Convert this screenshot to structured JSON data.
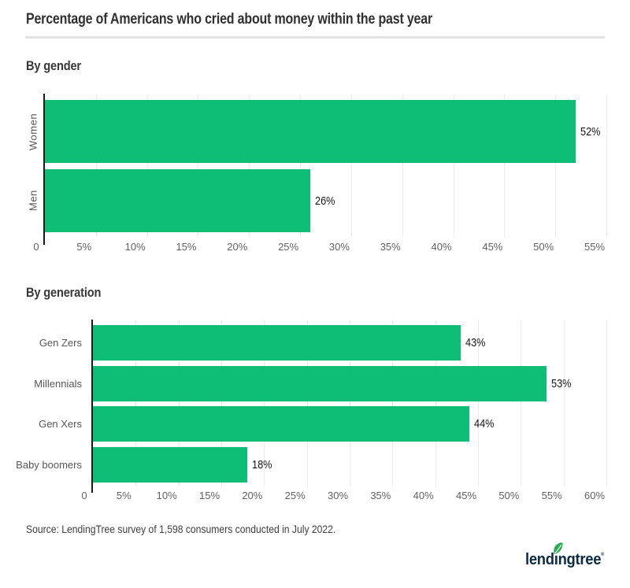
{
  "page": {
    "title": "Percentage of Americans who cried about money within the past year",
    "source": "Source: LendingTree survey of 1,598 consumers conducted in July 2022."
  },
  "logo": {
    "text": "lendingtree",
    "pre": "lend",
    "dotless_i": "ı",
    "post": "ngtree",
    "trademark": "®",
    "leaf_icon": "leaf-icon"
  },
  "colors": {
    "bar_green": "#0ebe76",
    "axis": "#1b1b1b",
    "gridline": "#ececec",
    "tick_text": "#616161",
    "category_text": "#565656",
    "value_text": "#161616",
    "heading_text": "#383838",
    "divider": "#e4e4e4",
    "logo_navy": "#0b2b44",
    "leaf_green": "#2aad52"
  },
  "chart_data": [
    {
      "type": "bar",
      "orientation": "horizontal",
      "title": "By gender",
      "categories": [
        "Women",
        "Men"
      ],
      "values": [
        52,
        26
      ],
      "value_labels": [
        "52%",
        "26%"
      ],
      "xlim": [
        0,
        55
      ],
      "tick_step": 5,
      "tick_labels": [
        "0",
        "5%",
        "10%",
        "15%",
        "20%",
        "25%",
        "30%",
        "35%",
        "40%",
        "45%",
        "50%",
        "55%"
      ],
      "grid": true,
      "category_labels_rotated": true,
      "legend": "none"
    },
    {
      "type": "bar",
      "orientation": "horizontal",
      "title": "By generation",
      "categories": [
        "Gen Zers",
        "Millennials",
        "Gen Xers",
        "Baby boomers"
      ],
      "values": [
        43,
        53,
        44,
        18
      ],
      "value_labels": [
        "43%",
        "53%",
        "44%",
        "18%"
      ],
      "xlim": [
        0,
        60
      ],
      "tick_step": 5,
      "tick_labels": [
        "0",
        "5%",
        "10%",
        "15%",
        "20%",
        "25%",
        "30%",
        "35%",
        "40%",
        "45%",
        "50%",
        "55%",
        "60%"
      ],
      "grid": true,
      "category_labels_rotated": false,
      "legend": "none"
    }
  ]
}
